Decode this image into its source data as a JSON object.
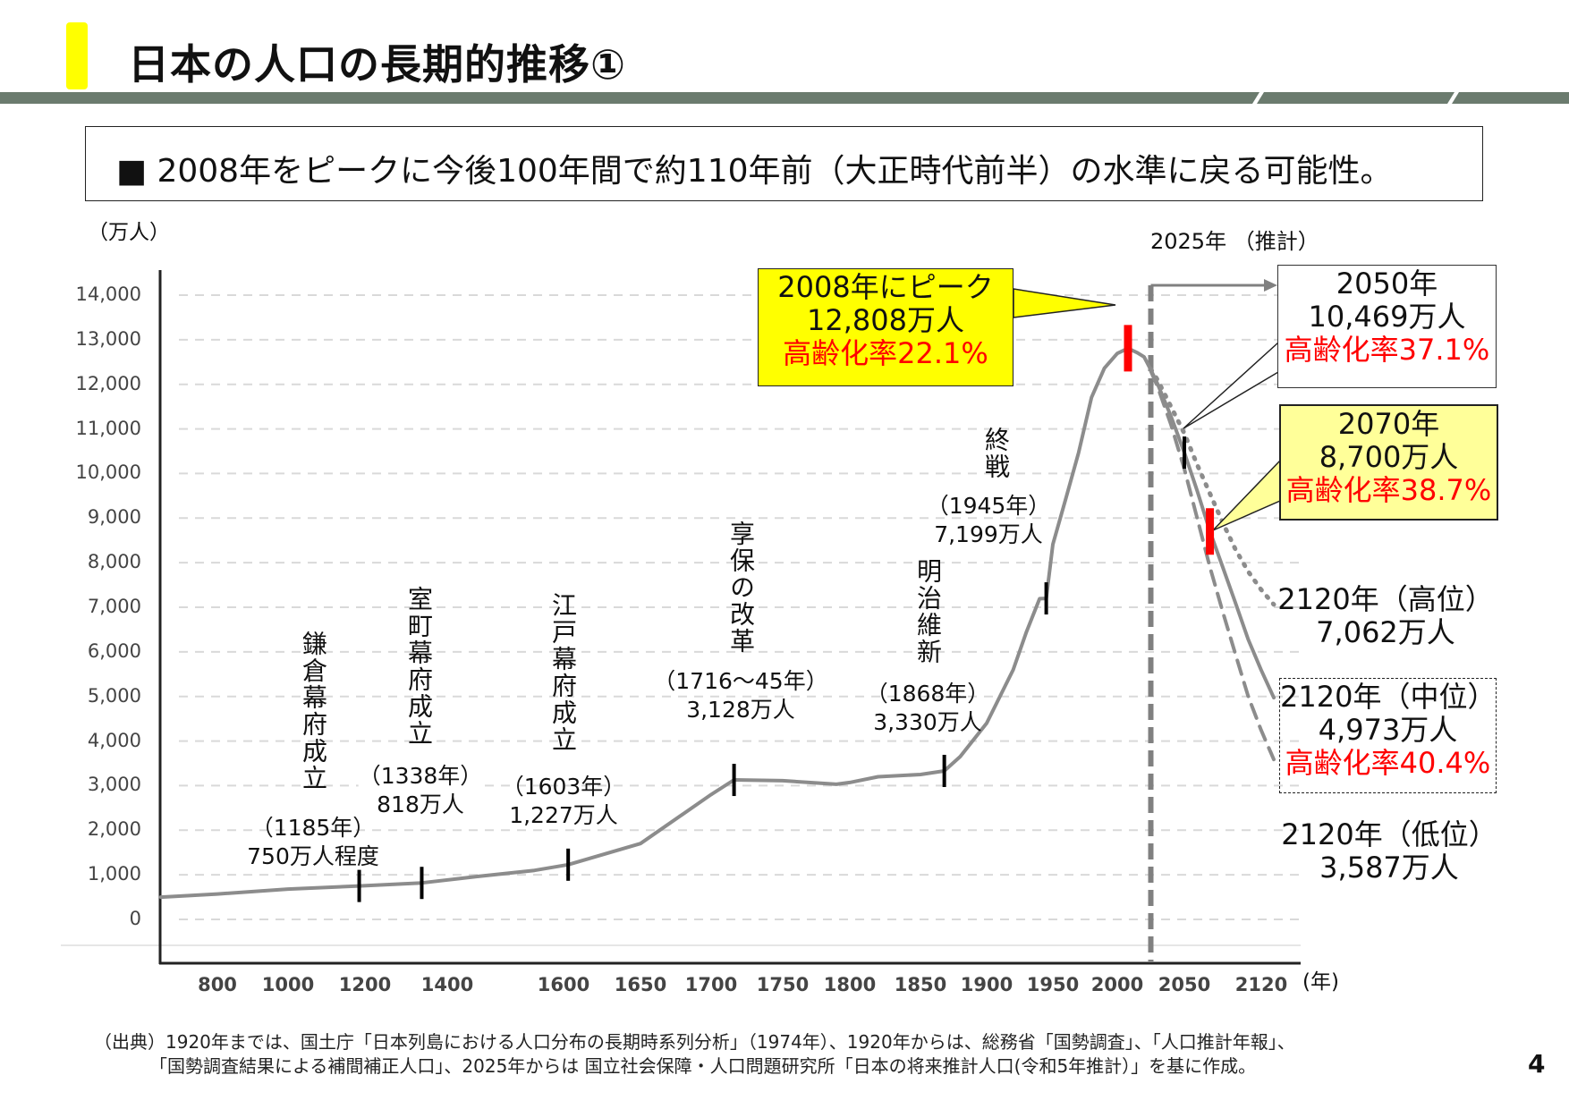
{
  "header": {
    "title": "日本の人口の長期的推移①",
    "subtitle": "■ 2008年をピークに今後100年間で約110年前（大正時代前半）の水準に戻る可能性。"
  },
  "colors": {
    "accent_yellow": "#ffff00",
    "band": "#6b7b6e",
    "curve": "#8c8c8c",
    "highlight_red": "#ff0000",
    "callout_yellow": "#ffff00",
    "callout_pale_yellow": "#ffff99"
  },
  "chart_data": {
    "type": "line",
    "ylabel": "（万人）",
    "xlabel": "(年)",
    "ylim": [
      0,
      14000
    ],
    "y_ticks": [
      "14,000",
      "13,000",
      "12,000",
      "11,000",
      "10,000",
      "9,000",
      "8,000",
      "7,000",
      "6,000",
      "5,000",
      "4,000",
      "3,000",
      "2,000",
      "1,000",
      "0"
    ],
    "x_ticks": [
      "800",
      "1000",
      "1200",
      "1400",
      "1600",
      "1650",
      "1700",
      "1750",
      "1800",
      "1850",
      "1900",
      "1950",
      "2000",
      "2050",
      "2120"
    ],
    "x_scale": "non-uniform (piecewise)",
    "grid": "horizontal dashed",
    "series": [
      {
        "style": "solid",
        "points": [
          [
            640,
            500
          ],
          [
            800,
            570
          ],
          [
            1000,
            680
          ],
          [
            1185,
            750
          ],
          [
            1338,
            818
          ],
          [
            1450,
            960
          ],
          [
            1550,
            1100
          ],
          [
            1603,
            1227
          ],
          [
            1650,
            1700
          ],
          [
            1700,
            2800
          ],
          [
            1716,
            3128
          ],
          [
            1750,
            3110
          ],
          [
            1790,
            3030
          ],
          [
            1800,
            3070
          ],
          [
            1820,
            3200
          ],
          [
            1850,
            3250
          ],
          [
            1868,
            3330
          ],
          [
            1880,
            3650
          ],
          [
            1900,
            4400
          ],
          [
            1920,
            5596
          ],
          [
            1930,
            6445
          ],
          [
            1940,
            7193
          ],
          [
            1945,
            7199
          ],
          [
            1950,
            8411
          ],
          [
            1960,
            9430
          ],
          [
            1970,
            10467
          ],
          [
            1980,
            11706
          ],
          [
            1990,
            12361
          ],
          [
            2000,
            12693
          ],
          [
            2008,
            12808
          ],
          [
            2015,
            12709
          ],
          [
            2020,
            12615
          ],
          [
            2025,
            12326
          ]
        ]
      },
      {
        "style": "solid",
        "points": [
          [
            2025,
            12326
          ],
          [
            2030,
            12012
          ],
          [
            2040,
            11284
          ],
          [
            2050,
            10469
          ],
          [
            2060,
            9615
          ],
          [
            2070,
            8700
          ],
          [
            2080,
            7900
          ],
          [
            2090,
            7100
          ],
          [
            2100,
            6278
          ],
          [
            2110,
            5600
          ],
          [
            2120,
            4973
          ]
        ]
      },
      {
        "style": "dotted",
        "points": [
          [
            2025,
            12340
          ],
          [
            2030,
            12100
          ],
          [
            2040,
            11500
          ],
          [
            2050,
            10900
          ],
          [
            2060,
            10200
          ],
          [
            2070,
            9550
          ],
          [
            2080,
            8900
          ],
          [
            2090,
            8300
          ],
          [
            2100,
            7800
          ],
          [
            2110,
            7400
          ],
          [
            2120,
            7062
          ]
        ]
      },
      {
        "style": "dashed",
        "points": [
          [
            2025,
            12300
          ],
          [
            2030,
            11950
          ],
          [
            2040,
            11100
          ],
          [
            2050,
            10100
          ],
          [
            2060,
            9000
          ],
          [
            2070,
            7900
          ],
          [
            2080,
            6900
          ],
          [
            2090,
            5950
          ],
          [
            2100,
            5000
          ],
          [
            2110,
            4250
          ],
          [
            2120,
            3587
          ]
        ]
      }
    ],
    "markers": [
      {
        "year": 1185,
        "value": 750,
        "color": "#000000"
      },
      {
        "year": 1338,
        "value": 818,
        "color": "#000000"
      },
      {
        "year": 1603,
        "value": 1227,
        "color": "#000000"
      },
      {
        "year": 1716,
        "value": 3128,
        "color": "#000000"
      },
      {
        "year": 1868,
        "value": 3330,
        "color": "#000000"
      },
      {
        "year": 1945,
        "value": 7199,
        "color": "#000000"
      },
      {
        "year": 2008,
        "value": 12808,
        "color": "#ff0000"
      },
      {
        "year": 2050,
        "value": 10469,
        "color": "#000000"
      },
      {
        "year": 2070,
        "value": 8700,
        "color": "#ff0000"
      }
    ],
    "projection_start": {
      "label": "2025年 （推計）",
      "year": 2025
    },
    "annotations": {
      "kamakura": {
        "event": "鎌倉幕府成立",
        "year": "（1185年）",
        "value": "750万人程度"
      },
      "muromachi": {
        "event": "室町幕府成立",
        "year": "（1338年）",
        "value": "818万人"
      },
      "edo": {
        "event": "江戸幕府成立",
        "year": "（1603年）",
        "value": "1,227万人"
      },
      "kyoho": {
        "event": "享保の改革",
        "year": "（1716～45年）",
        "value": "3,128万人"
      },
      "meiji": {
        "event": "明治維新",
        "year": "（1868年）",
        "value": "3,330万人"
      },
      "shusen": {
        "event": "終戦",
        "year": "（1945年）",
        "value": "7,199万人"
      },
      "peak": {
        "year": "2008年にピーク",
        "value": "12,808万人",
        "aging": "高齢化率22.1%"
      },
      "y2050": {
        "year": "2050年",
        "value": "10,469万人",
        "aging": "高齢化率37.1%"
      },
      "y2070": {
        "year": "2070年",
        "value": "8,700万人",
        "aging": "高齢化率38.7%"
      },
      "high2120": {
        "year": "2120年（高位）",
        "value": "7,062万人"
      },
      "mid2120": {
        "year": "2120年（中位）",
        "value": "4,973万人",
        "aging": "高齢化率40.4%"
      },
      "low2120": {
        "year": "2120年（低位）",
        "value": "3,587万人"
      }
    }
  },
  "footer": {
    "source_line1": "（出典）1920年までは、国土庁「日本列島における人口分布の長期時系列分析」（1974年）、1920年からは、総務省「国勢調査」、「人口推計年報」、",
    "source_line2": "「国勢調査結果による補間補正人口」、2025年からは 国立社会保障・人口問題研究所「日本の将来推計人口(令和5年推計）」を基に作成。",
    "page_number": "4"
  }
}
